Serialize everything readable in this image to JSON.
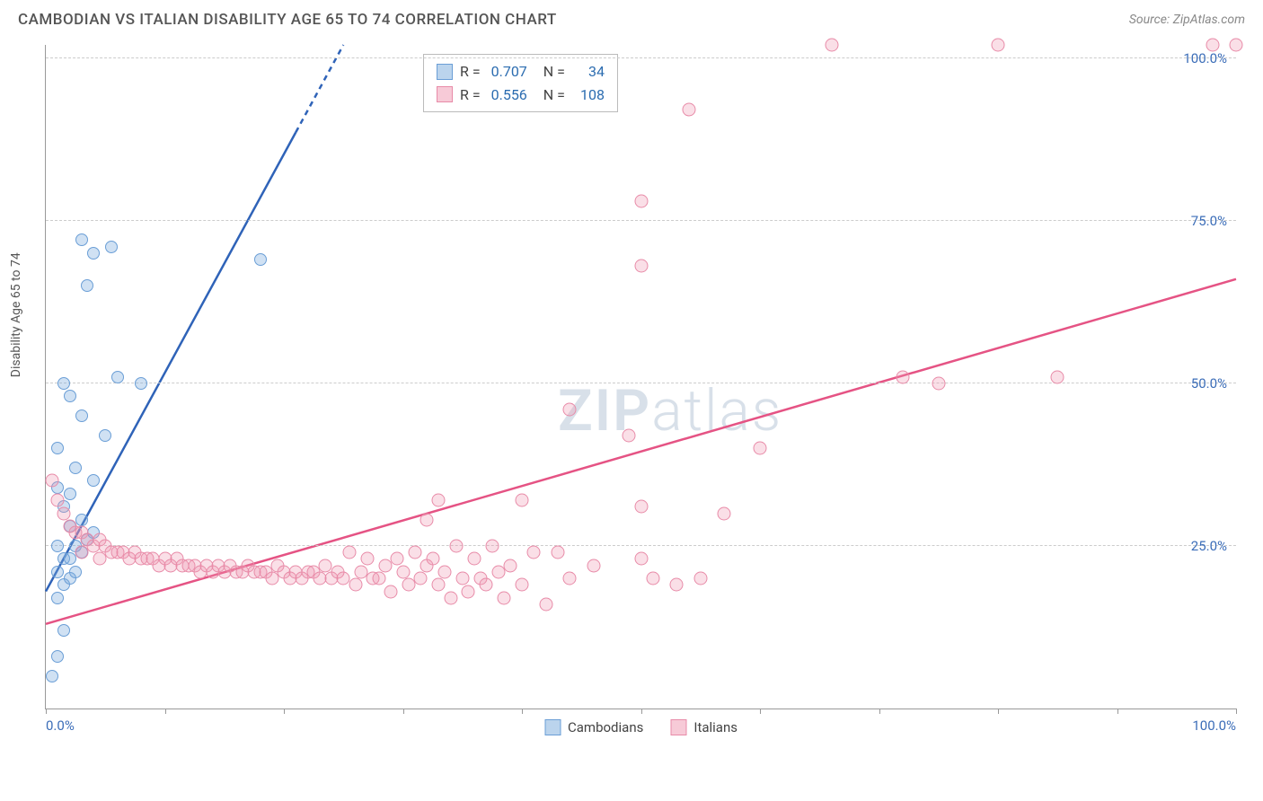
{
  "header": {
    "title": "CAMBODIAN VS ITALIAN DISABILITY AGE 65 TO 74 CORRELATION CHART",
    "source_label": "Source:",
    "source_name": "ZipAtlas.com"
  },
  "chart": {
    "type": "scatter",
    "ylabel": "Disability Age 65 to 74",
    "xlim": [
      0,
      100
    ],
    "ylim": [
      0,
      102
    ],
    "background_color": "#ffffff",
    "grid_color": "#cccccc",
    "yticks": [
      25.0,
      50.0,
      75.0,
      100.0
    ],
    "ytick_labels": [
      "25.0%",
      "50.0%",
      "75.0%",
      "100.0%"
    ],
    "xticks": [
      0,
      10,
      20,
      30,
      40,
      50,
      60,
      70,
      80,
      90,
      100
    ],
    "xtick_labels_shown": {
      "0": "0.0%",
      "100": "100.0%"
    },
    "watermark": "ZIPatlas",
    "series": [
      {
        "name": "Cambodians",
        "color": "#6a9ed6",
        "fill": "rgba(120,170,220,0.35)",
        "marker_size": 14,
        "R": "0.707",
        "N": "34",
        "trend": {
          "x1": 0,
          "y1": 18,
          "x2": 25,
          "y2": 102,
          "dashed_after_x": 21,
          "stroke": "#2f63b8",
          "stroke_width": 2.5
        },
        "points": [
          [
            0.5,
            5
          ],
          [
            1,
            8
          ],
          [
            1.5,
            12
          ],
          [
            1,
            17
          ],
          [
            1.5,
            19
          ],
          [
            2,
            20
          ],
          [
            1,
            21
          ],
          [
            2.5,
            21
          ],
          [
            1.5,
            23
          ],
          [
            2,
            23
          ],
          [
            3,
            24
          ],
          [
            2.5,
            25
          ],
          [
            3.5,
            26
          ],
          [
            1,
            25
          ],
          [
            4,
            27
          ],
          [
            2,
            28
          ],
          [
            3,
            29
          ],
          [
            1.5,
            31
          ],
          [
            2,
            33
          ],
          [
            1,
            34
          ],
          [
            4,
            35
          ],
          [
            2.5,
            37
          ],
          [
            1,
            40
          ],
          [
            5,
            42
          ],
          [
            3,
            45
          ],
          [
            2,
            48
          ],
          [
            1.5,
            50
          ],
          [
            6,
            51
          ],
          [
            3.5,
            65
          ],
          [
            4,
            70
          ],
          [
            5.5,
            71
          ],
          [
            3,
            72
          ],
          [
            18,
            69
          ],
          [
            8,
            50
          ]
        ]
      },
      {
        "name": "Italians",
        "color": "#e88ba8",
        "fill": "rgba(240,150,175,0.3)",
        "marker_size": 15,
        "R": "0.556",
        "N": "108",
        "trend": {
          "x1": 0,
          "y1": 13,
          "x2": 100,
          "y2": 66,
          "stroke": "#e55384",
          "stroke_width": 2.5
        },
        "points": [
          [
            0.5,
            35
          ],
          [
            1,
            32
          ],
          [
            1.5,
            30
          ],
          [
            2,
            28
          ],
          [
            2.5,
            27
          ],
          [
            3,
            27
          ],
          [
            3.5,
            26
          ],
          [
            4,
            25
          ],
          [
            4.5,
            26
          ],
          [
            5,
            25
          ],
          [
            5.5,
            24
          ],
          [
            6,
            24
          ],
          [
            6.5,
            24
          ],
          [
            7,
            23
          ],
          [
            7.5,
            24
          ],
          [
            8,
            23
          ],
          [
            8.5,
            23
          ],
          [
            9,
            23
          ],
          [
            9.5,
            22
          ],
          [
            10,
            23
          ],
          [
            10.5,
            22
          ],
          [
            11,
            23
          ],
          [
            11.5,
            22
          ],
          [
            12,
            22
          ],
          [
            12.5,
            22
          ],
          [
            13,
            21
          ],
          [
            13.5,
            22
          ],
          [
            14,
            21
          ],
          [
            14.5,
            22
          ],
          [
            15,
            21
          ],
          [
            15.5,
            22
          ],
          [
            16,
            21
          ],
          [
            16.5,
            21
          ],
          [
            17,
            22
          ],
          [
            17.5,
            21
          ],
          [
            18,
            21
          ],
          [
            18.5,
            21
          ],
          [
            19,
            20
          ],
          [
            19.5,
            22
          ],
          [
            20,
            21
          ],
          [
            20.5,
            20
          ],
          [
            21,
            21
          ],
          [
            21.5,
            20
          ],
          [
            22,
            21
          ],
          [
            22.5,
            21
          ],
          [
            23,
            20
          ],
          [
            23.5,
            22
          ],
          [
            24,
            20
          ],
          [
            24.5,
            21
          ],
          [
            25,
            20
          ],
          [
            25.5,
            24
          ],
          [
            26,
            19
          ],
          [
            26.5,
            21
          ],
          [
            27,
            23
          ],
          [
            27.5,
            20
          ],
          [
            28,
            20
          ],
          [
            28.5,
            22
          ],
          [
            29,
            18
          ],
          [
            29.5,
            23
          ],
          [
            30,
            21
          ],
          [
            30.5,
            19
          ],
          [
            31,
            24
          ],
          [
            31.5,
            20
          ],
          [
            32,
            22
          ],
          [
            32.5,
            23
          ],
          [
            33,
            19
          ],
          [
            33.5,
            21
          ],
          [
            34,
            17
          ],
          [
            34.5,
            25
          ],
          [
            35,
            20
          ],
          [
            35.5,
            18
          ],
          [
            36,
            23
          ],
          [
            36.5,
            20
          ],
          [
            37,
            19
          ],
          [
            37.5,
            25
          ],
          [
            38,
            21
          ],
          [
            38.5,
            17
          ],
          [
            39,
            22
          ],
          [
            40,
            19
          ],
          [
            41,
            24
          ],
          [
            42,
            16
          ],
          [
            32,
            29
          ],
          [
            33,
            32
          ],
          [
            40,
            32
          ],
          [
            43,
            24
          ],
          [
            44,
            20
          ],
          [
            46,
            22
          ],
          [
            44,
            46
          ],
          [
            50,
            23
          ],
          [
            50,
            31
          ],
          [
            51,
            20
          ],
          [
            53,
            19
          ],
          [
            55,
            20
          ],
          [
            49,
            42
          ],
          [
            50,
            68
          ],
          [
            50,
            78
          ],
          [
            54,
            92
          ],
          [
            57,
            30
          ],
          [
            60,
            40
          ],
          [
            66,
            102
          ],
          [
            72,
            51
          ],
          [
            75,
            50
          ],
          [
            80,
            102
          ],
          [
            85,
            51
          ],
          [
            98,
            102
          ],
          [
            100,
            102
          ],
          [
            3,
            24
          ],
          [
            4.5,
            23
          ]
        ]
      }
    ],
    "legend_box": {
      "rows": [
        {
          "swatch": "blue",
          "r_label": "R =",
          "r_val": "0.707",
          "n_label": "N =",
          "n_val": "34"
        },
        {
          "swatch": "pink",
          "r_label": "R =",
          "r_val": "0.556",
          "n_label": "N =",
          "n_val": "108"
        }
      ]
    },
    "bottom_legend": [
      {
        "swatch": "blue",
        "label": "Cambodians"
      },
      {
        "swatch": "pink",
        "label": "Italians"
      }
    ]
  }
}
